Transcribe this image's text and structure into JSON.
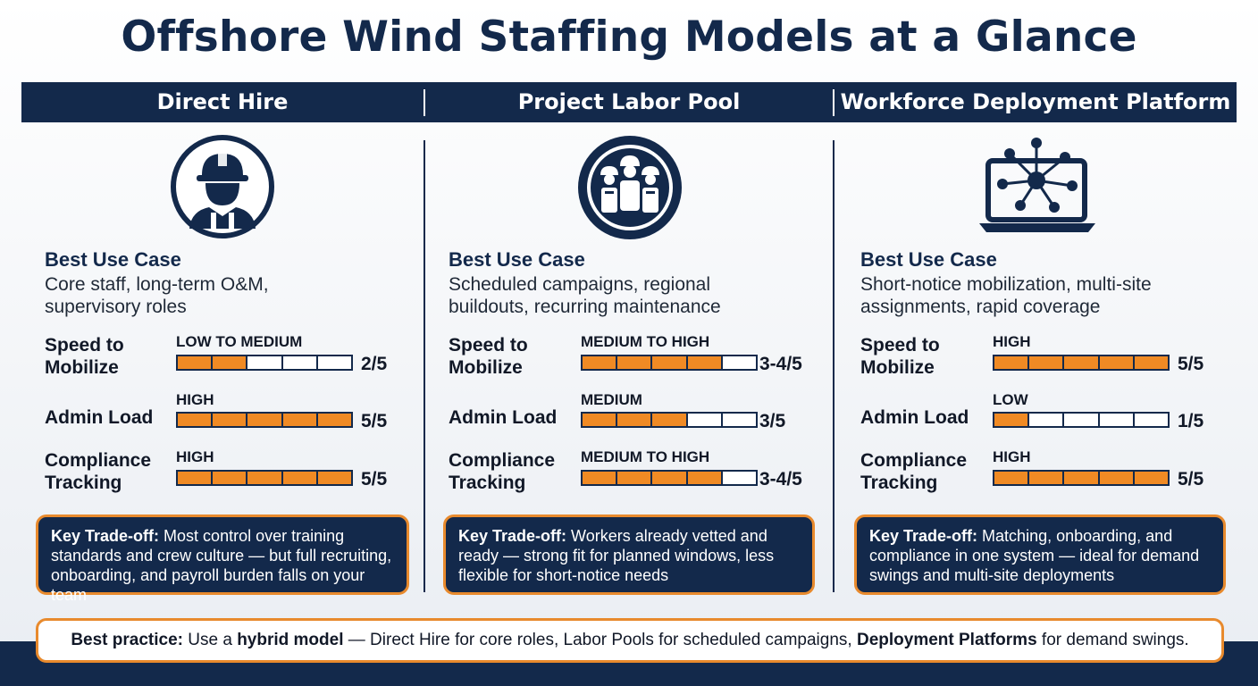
{
  "title": "Offshore Wind Staffing Models at a Glance",
  "colors": {
    "navy": "#13294b",
    "orange": "#f08a24",
    "border_orange": "#e88a2d"
  },
  "labels": {
    "best_use_case": "Best Use Case",
    "speed": "Speed to\nMobilize",
    "admin": "Admin Load",
    "compliance": "Compliance\nTracking",
    "key_tradeoff": "Key Trade-off:"
  },
  "columns": [
    {
      "name": "Direct Hire",
      "icon": "hardhat-worker-icon",
      "use_case": "Core staff, long-term O&M, supervisory roles",
      "metrics": [
        {
          "level": "LOW TO MEDIUM",
          "filled": 2,
          "score": "2/5"
        },
        {
          "level": "HIGH",
          "filled": 5,
          "score": "5/5"
        },
        {
          "level": "HIGH",
          "filled": 5,
          "score": "5/5"
        }
      ],
      "tradeoff": "Most control over training standards and crew culture — but full recruiting, onboarding, and payroll burden falls on your team"
    },
    {
      "name": "Project Labor Pool",
      "icon": "worker-crew-badge-icon",
      "use_case": "Scheduled campaigns, regional buildouts, recurring maintenance",
      "metrics": [
        {
          "level": "MEDIUM TO HIGH",
          "filled": 4,
          "score": "3-4/5"
        },
        {
          "level": "MEDIUM",
          "filled": 3,
          "score": "3/5"
        },
        {
          "level": "MEDIUM TO HIGH",
          "filled": 4,
          "score": "3-4/5"
        }
      ],
      "tradeoff": "Workers already vetted and ready — strong fit for planned windows, less flexible for short-notice needs"
    },
    {
      "name": "Workforce Deployment Platform",
      "icon": "laptop-network-icon",
      "use_case": "Short-notice mobilization, multi-site assignments, rapid coverage",
      "metrics": [
        {
          "level": "HIGH",
          "filled": 5,
          "score": "5/5"
        },
        {
          "level": "LOW",
          "filled": 1,
          "score": "1/5"
        },
        {
          "level": "HIGH",
          "filled": 5,
          "score": "5/5"
        }
      ],
      "tradeoff": "Matching, onboarding, and compliance in one system — ideal for demand swings and multi-site deployments"
    }
  ],
  "best_practice": {
    "label": "Best practice:",
    "text_1": "Use a",
    "hybrid": "hybrid model",
    "text_2": "— Direct Hire for core roles, Labor Pools for scheduled campaigns,",
    "platforms": "Deployment Platforms",
    "text_3": "for demand swings."
  }
}
